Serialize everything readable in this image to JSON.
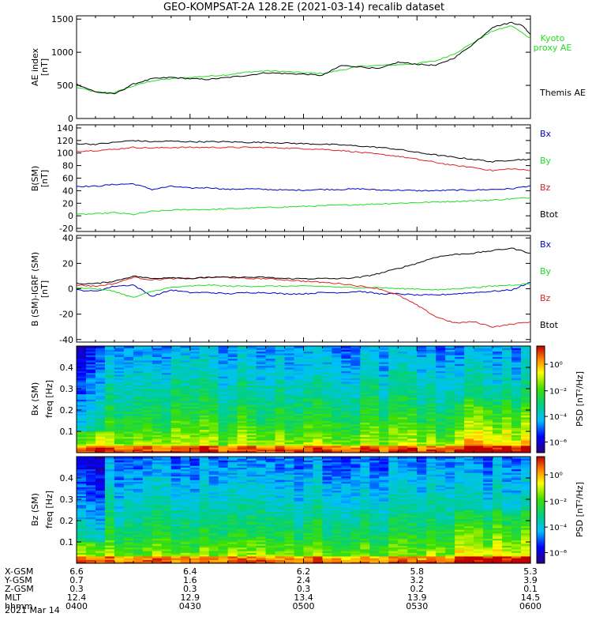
{
  "title": "GEO-KOMPSAT-2A 128.2E (2021-03-14) recalib dataset",
  "date_label": "2021 Mar 14",
  "chart_data": [
    {
      "type": "line",
      "id": "ae",
      "ylabel": [
        "AE index",
        "[nT]"
      ],
      "ylim": [
        0,
        1550
      ],
      "yticks": [
        0,
        500,
        1000,
        1500
      ],
      "x_range": [
        "04:00",
        "06:00"
      ],
      "series": [
        {
          "name": "Kyoto proxy AE",
          "legend": [
            "Kyoto",
            "proxy AE"
          ],
          "color": "#22dd22",
          "x": [
            0,
            5,
            10,
            15,
            20,
            25,
            30,
            35,
            40,
            45,
            50,
            55,
            60,
            65,
            70,
            75,
            80,
            85,
            90,
            95,
            100,
            105,
            110,
            115,
            120
          ],
          "values": [
            470,
            400,
            390,
            490,
            570,
            600,
            620,
            640,
            660,
            700,
            720,
            710,
            690,
            680,
            730,
            790,
            800,
            810,
            830,
            870,
            980,
            1150,
            1320,
            1400,
            1210
          ]
        },
        {
          "name": "Themis AE",
          "legend": [
            "Themis AE"
          ],
          "color": "#000000",
          "x": [
            0,
            5,
            10,
            15,
            20,
            25,
            30,
            35,
            40,
            45,
            50,
            55,
            60,
            65,
            70,
            75,
            80,
            85,
            90,
            95,
            100,
            105,
            110,
            115,
            118,
            120
          ],
          "values": [
            520,
            400,
            370,
            520,
            600,
            620,
            600,
            590,
            620,
            650,
            690,
            680,
            670,
            650,
            800,
            780,
            750,
            850,
            820,
            800,
            920,
            1130,
            1380,
            1450,
            1400,
            1270
          ]
        }
      ]
    },
    {
      "type": "line",
      "id": "b",
      "ylabel": [
        "B",
        "(SM)",
        "[nT]"
      ],
      "ylim": [
        -25,
        145
      ],
      "yticks": [
        -20,
        0,
        20,
        40,
        60,
        80,
        100,
        120,
        140
      ],
      "series": [
        {
          "name": "Bx",
          "color": "#0000cc",
          "x": [
            0,
            5,
            10,
            15,
            20,
            25,
            30,
            35,
            40,
            45,
            50,
            55,
            60,
            65,
            70,
            75,
            80,
            85,
            90,
            95,
            100,
            105,
            110,
            115,
            120
          ],
          "values": [
            47,
            47,
            50,
            51,
            42,
            47,
            44,
            45,
            42,
            43,
            42,
            41,
            41,
            42,
            42,
            43,
            41,
            41,
            40,
            40,
            41,
            41,
            42,
            43,
            48
          ]
        },
        {
          "name": "By",
          "color": "#22dd22",
          "x": [
            0,
            5,
            10,
            15,
            20,
            25,
            30,
            35,
            40,
            45,
            50,
            55,
            60,
            65,
            70,
            75,
            80,
            85,
            90,
            95,
            100,
            105,
            110,
            115,
            120
          ],
          "values": [
            2,
            3,
            5,
            2,
            7,
            9,
            10,
            10,
            11,
            12,
            13,
            14,
            15,
            16,
            17,
            18,
            19,
            20,
            21,
            22,
            23,
            24,
            25,
            27,
            29
          ]
        },
        {
          "name": "Bz",
          "color": "#dd2222",
          "x": [
            0,
            5,
            10,
            15,
            20,
            25,
            30,
            35,
            40,
            45,
            50,
            55,
            60,
            65,
            70,
            75,
            80,
            85,
            90,
            95,
            100,
            105,
            110,
            115,
            120
          ],
          "values": [
            103,
            104,
            106,
            109,
            108,
            109,
            109,
            109,
            109,
            109,
            109,
            108,
            107,
            106,
            104,
            101,
            98,
            95,
            90,
            85,
            80,
            77,
            72,
            75,
            72
          ]
        },
        {
          "name": "Btot",
          "color": "#000000",
          "x": [
            0,
            5,
            10,
            15,
            20,
            25,
            30,
            35,
            40,
            45,
            50,
            55,
            60,
            65,
            70,
            75,
            80,
            85,
            90,
            95,
            100,
            105,
            110,
            115,
            120
          ],
          "values": [
            115,
            114,
            117,
            120,
            118,
            119,
            118,
            118,
            118,
            117,
            117,
            116,
            115,
            114,
            113,
            111,
            109,
            106,
            101,
            97,
            93,
            90,
            86,
            89,
            90
          ]
        }
      ]
    },
    {
      "type": "line",
      "id": "db",
      "ylabel": [
        "B (SM)-IGRF (SM)",
        "[nT]"
      ],
      "ylim": [
        -42,
        42
      ],
      "yticks": [
        -40,
        -20,
        0,
        20,
        40
      ],
      "series": [
        {
          "name": "Bx",
          "color": "#0000cc",
          "x": [
            0,
            5,
            10,
            15,
            20,
            25,
            30,
            35,
            40,
            45,
            50,
            55,
            60,
            65,
            70,
            75,
            80,
            85,
            90,
            95,
            100,
            105,
            110,
            115,
            120
          ],
          "values": [
            -1,
            -2,
            2,
            3,
            -6,
            -1,
            -3,
            -3,
            -4,
            -3,
            -3,
            -4,
            -4,
            -3,
            -3,
            -2,
            -4,
            -4,
            -5,
            -5,
            -4,
            -3,
            -2,
            -1,
            5
          ]
        },
        {
          "name": "By",
          "color": "#22dd22",
          "x": [
            0,
            5,
            10,
            15,
            20,
            25,
            30,
            35,
            40,
            45,
            50,
            55,
            60,
            65,
            70,
            75,
            80,
            85,
            90,
            95,
            100,
            105,
            110,
            115,
            120
          ],
          "values": [
            1,
            0,
            -2,
            -7,
            -2,
            1,
            2,
            3,
            2,
            2,
            2,
            2,
            2,
            2,
            1,
            1,
            1,
            0,
            0,
            -1,
            0,
            1,
            2,
            3,
            4
          ]
        },
        {
          "name": "Bz",
          "color": "#dd2222",
          "x": [
            0,
            5,
            10,
            15,
            20,
            25,
            30,
            35,
            40,
            45,
            50,
            55,
            60,
            65,
            70,
            75,
            80,
            85,
            90,
            95,
            100,
            105,
            110,
            115,
            120
          ],
          "values": [
            3,
            2,
            4,
            9,
            7,
            8,
            8,
            9,
            9,
            8,
            8,
            7,
            6,
            5,
            4,
            2,
            0,
            -5,
            -13,
            -22,
            -27,
            -26,
            -30,
            -28,
            -26
          ]
        },
        {
          "name": "Btot",
          "color": "#000000",
          "x": [
            0,
            5,
            10,
            15,
            20,
            25,
            30,
            35,
            40,
            45,
            50,
            55,
            60,
            65,
            70,
            75,
            80,
            85,
            90,
            95,
            100,
            105,
            110,
            115,
            120
          ],
          "values": [
            4,
            4,
            6,
            10,
            8,
            9,
            8,
            9,
            9,
            9,
            9,
            8,
            8,
            8,
            8,
            9,
            12,
            16,
            20,
            25,
            27,
            28,
            30,
            32,
            28
          ]
        }
      ]
    },
    {
      "type": "heatmap",
      "id": "bxspec",
      "ylabel": [
        "Bx (SM)",
        "freq [Hz]"
      ],
      "ylim": [
        0,
        0.5
      ],
      "yticks": [
        0.1,
        0.2,
        0.3,
        0.4
      ],
      "zlabel": "PSD [nT²/Hz]",
      "colorbar_ticks": [
        "10⁰",
        "10⁻²",
        "10⁻⁴",
        "10⁻⁶"
      ]
    },
    {
      "type": "heatmap",
      "id": "bzspec",
      "ylabel": [
        "Bz (SM)",
        "freq [Hz]"
      ],
      "ylim": [
        0,
        0.5
      ],
      "yticks": [
        0.1,
        0.2,
        0.3,
        0.4
      ],
      "zlabel": "PSD [nT²/Hz]",
      "colorbar_ticks": [
        "10⁰",
        "10⁻²",
        "10⁻⁴",
        "10⁻⁶"
      ]
    }
  ],
  "ephemeris": {
    "labels": [
      "X-GSM",
      "Y-GSM",
      "Z-GSM",
      "MLT",
      "hhmm"
    ],
    "x": [
      0,
      30,
      60,
      90,
      120
    ],
    "columns": [
      [
        "6.6",
        "0.7",
        "0.3",
        "12.4",
        "0400"
      ],
      [
        "6.4",
        "1.6",
        "0.3",
        "12.9",
        "0430"
      ],
      [
        "6.2",
        "2.4",
        "0.3",
        "13.4",
        "0500"
      ],
      [
        "5.8",
        "3.2",
        "0.2",
        "13.9",
        "0530"
      ],
      [
        "5.3",
        "3.9",
        "0.1",
        "14.5",
        "0600"
      ]
    ]
  }
}
